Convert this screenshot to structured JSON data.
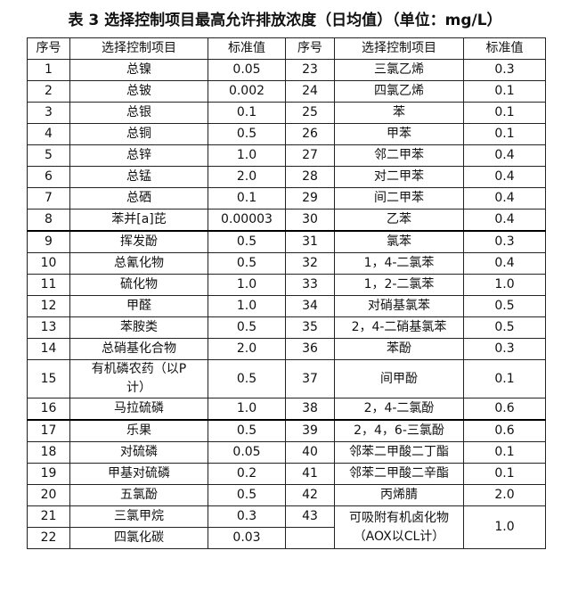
{
  "header": {
    "title": "表 3 选择控制项目最高允许排放浓度（日均值）（单位：mg/L）"
  },
  "table": {
    "columns": [
      "序号",
      "选择控制项目",
      "标准值",
      "序号",
      "选择控制项目",
      "标准值"
    ],
    "rows": [
      [
        "1",
        "总镍",
        "0.05",
        "23",
        "三氯乙烯",
        "0.3"
      ],
      [
        "2",
        "总铍",
        "0.002",
        "24",
        "四氯乙烯",
        "0.1"
      ],
      [
        "3",
        "总银",
        "0.1",
        "25",
        "苯",
        "0.1"
      ],
      [
        "4",
        "总铜",
        "0.5",
        "26",
        "甲苯",
        "0.1"
      ],
      [
        "5",
        "总锌",
        "1.0",
        "27",
        "邻二甲苯",
        "0.4"
      ],
      [
        "6",
        "总锰",
        "2.0",
        "28",
        "对二甲苯",
        "0.4"
      ],
      [
        "7",
        "总硒",
        "0.1",
        "29",
        "间二甲苯",
        "0.4"
      ],
      [
        "8",
        "苯并[a]芘",
        "0.00003",
        "30",
        "乙苯",
        "0.4"
      ],
      [
        "9",
        "挥发酚",
        "0.5",
        "31",
        "氯苯",
        "0.3"
      ],
      [
        "10",
        "总氰化物",
        "0.5",
        "32",
        "1，4-二氯苯",
        "0.4"
      ],
      [
        "11",
        "硫化物",
        "1.0",
        "33",
        "1，2-二氯苯",
        "1.0"
      ],
      [
        "12",
        "甲醛",
        "1.0",
        "34",
        "对硝基氯苯",
        "0.5"
      ],
      [
        "13",
        "苯胺类",
        "0.5",
        "35",
        "2，4-二硝基氯苯",
        "0.5"
      ],
      [
        "14",
        "总硝基化合物",
        "2.0",
        "36",
        "苯酚",
        "0.3"
      ],
      [
        "15",
        "有机磷农药（以P计）",
        "0.5",
        "37",
        "间甲酚",
        "0.1"
      ],
      [
        "16",
        "马拉硫磷",
        "1.0",
        "38",
        "2，4-二氯酚",
        "0.6"
      ],
      [
        "17",
        "乐果",
        "0.5",
        "39",
        "2，4，6-三氯酚",
        "0.6"
      ],
      [
        "18",
        "对硫磷",
        "0.05",
        "40",
        "邻苯二甲酸二丁酯",
        "0.1"
      ],
      [
        "19",
        "甲基对硫磷",
        "0.2",
        "41",
        "邻苯二甲酸二辛酯",
        "0.1"
      ],
      [
        "20",
        "五氯酚",
        "0.5",
        "42",
        "丙烯腈",
        "2.0"
      ],
      [
        "21",
        "三氯甲烷",
        "0.3",
        "43",
        "可吸附有机卤化物（AOX以CL计）",
        "1.0"
      ],
      [
        "22",
        "四氯化碳",
        "0.03"
      ]
    ]
  }
}
